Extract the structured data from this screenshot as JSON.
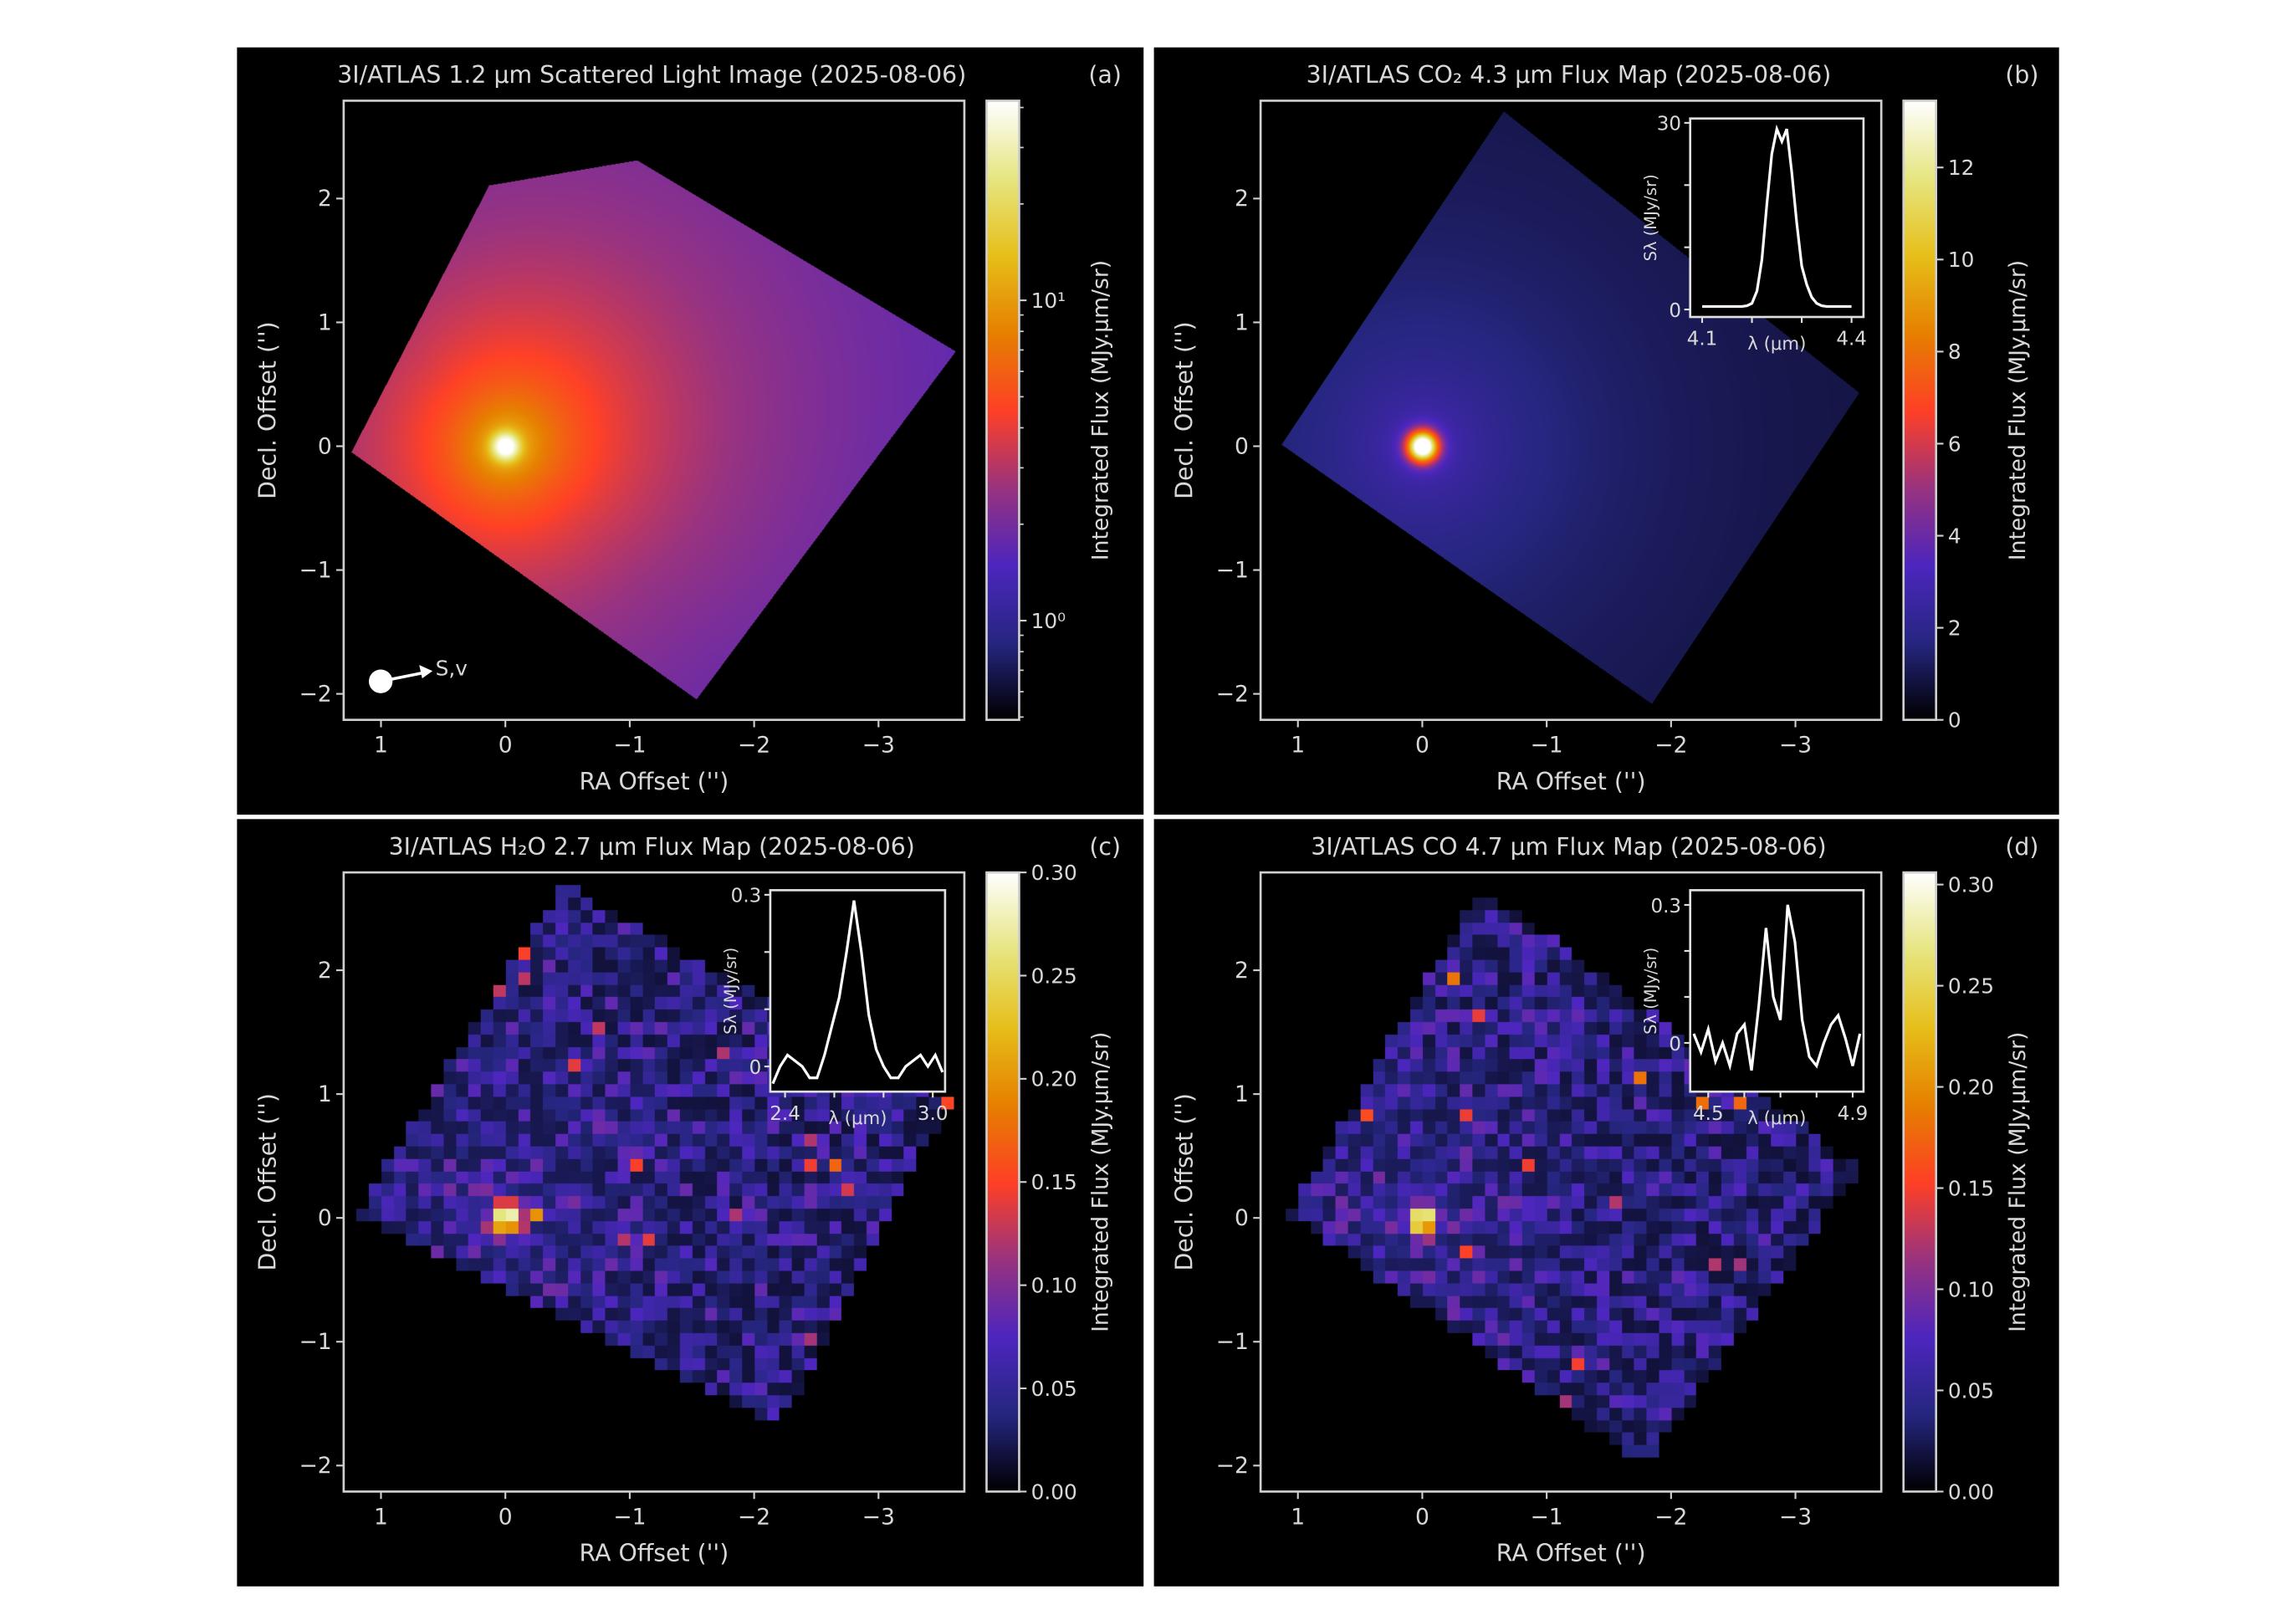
{
  "colors": {
    "background": "#000000",
    "axes": "#cfcfcf",
    "text": "#d8d8d8",
    "spectrum": "#ffffff",
    "page": "#ffffff"
  },
  "chart_data": [
    {
      "type": "heatmap",
      "panel": "a",
      "title": "3I/ATLAS 1.2 μm Scattered Light Image (2025-08-06)",
      "label": "(a)",
      "xlabel": "RA Offset ('')",
      "ylabel": "Decl. Offset ('')",
      "xlim": [
        1.3,
        -3.69
      ],
      "ylim": [
        -2.21,
        2.79
      ],
      "xticks": [
        1,
        0,
        -1,
        -2,
        -3
      ],
      "xticklabels": [
        "1",
        "0",
        "−1",
        "−2",
        "−3"
      ],
      "yticks": [
        2,
        1,
        0,
        -1,
        -2
      ],
      "yticklabels": [
        "2",
        "1",
        "0",
        "−1",
        "−2"
      ],
      "colormap": "CMRmap",
      "colorbar": {
        "label": "Integrated Flux (MJy.μm/sr)",
        "scale": "log",
        "lim": [
          0.49,
          42
        ],
        "ticks": [
          1,
          10
        ],
        "ticklabels": [
          "10⁰",
          "10¹"
        ]
      },
      "annotation": "S,v",
      "peak_position": [
        0,
        0
      ]
    },
    {
      "type": "heatmap",
      "panel": "b",
      "title": "3I/ATLAS CO₂ 4.3 μm Flux Map (2025-08-06)",
      "label": "(b)",
      "xlabel": "RA Offset ('')",
      "ylabel": "Decl. Offset ('')",
      "xlim": [
        1.3,
        -3.69
      ],
      "ylim": [
        -2.21,
        2.79
      ],
      "xticks": [
        1,
        0,
        -1,
        -2,
        -3
      ],
      "xticklabels": [
        "1",
        "0",
        "−1",
        "−2",
        "−3"
      ],
      "yticks": [
        2,
        1,
        0,
        -1,
        -2
      ],
      "yticklabels": [
        "2",
        "1",
        "0",
        "−1",
        "−2"
      ],
      "colormap": "CMRmap",
      "colorbar": {
        "label": "Integrated Flux (MJy.μm/sr)",
        "scale": "linear",
        "lim": [
          0,
          13.45
        ],
        "ticks": [
          0,
          2,
          4,
          6,
          8,
          10,
          12
        ],
        "ticklabels": [
          "0",
          "2",
          "4",
          "6",
          "8",
          "10",
          "12"
        ]
      },
      "peak_position": [
        0,
        0
      ],
      "inset": {
        "type": "line",
        "xlabel": "λ (μm)",
        "ylabel": "Sλ (MJy/sr)",
        "xlim": [
          4.076,
          4.424
        ],
        "ylim": [
          -1.2,
          30.7
        ],
        "xticks": [
          4.1,
          4.4
        ],
        "xticklabels": [
          "4.1",
          "4.4"
        ],
        "xminor": [
          4.2,
          4.3
        ],
        "yticks": [
          0,
          30
        ],
        "yticklabels": [
          "0",
          "30"
        ],
        "yminor": [
          10,
          20
        ],
        "x": [
          4.1,
          4.11,
          4.12,
          4.13,
          4.14,
          4.15,
          4.16,
          4.17,
          4.18,
          4.19,
          4.2,
          4.21,
          4.22,
          4.23,
          4.24,
          4.25,
          4.26,
          4.27,
          4.28,
          4.29,
          4.3,
          4.31,
          4.32,
          4.33,
          4.34,
          4.35,
          4.36,
          4.37,
          4.38,
          4.39,
          4.4
        ],
        "y": [
          0.5,
          0.5,
          0.5,
          0.5,
          0.5,
          0.5,
          0.5,
          0.5,
          0.5,
          0.6,
          1,
          3,
          8,
          17,
          25,
          29,
          27,
          29,
          22,
          14,
          7,
          4,
          2,
          1,
          0.6,
          0.5,
          0.5,
          0.5,
          0.5,
          0.5,
          0.5
        ]
      }
    },
    {
      "type": "heatmap",
      "panel": "c",
      "title": "3I/ATLAS H₂O 2.7 μm Flux Map (2025-08-06)",
      "label": "(c)",
      "xlabel": "RA Offset ('')",
      "ylabel": "Decl. Offset ('')",
      "xlim": [
        1.3,
        -3.69
      ],
      "ylim": [
        -2.21,
        2.79
      ],
      "xticks": [
        1,
        0,
        -1,
        -2,
        -3
      ],
      "xticklabels": [
        "1",
        "0",
        "−1",
        "−2",
        "−3"
      ],
      "yticks": [
        2,
        1,
        0,
        -1,
        -2
      ],
      "yticklabels": [
        "2",
        "1",
        "0",
        "−1",
        "−2"
      ],
      "colormap": "CMRmap",
      "colorbar": {
        "label": "Integrated Flux (MJy.μm/sr)",
        "scale": "linear",
        "lim": [
          0,
          0.3
        ],
        "ticks": [
          0,
          0.05,
          0.1,
          0.15,
          0.2,
          0.25,
          0.3
        ],
        "ticklabels": [
          "0.00",
          "0.05",
          "0.10",
          "0.15",
          "0.20",
          "0.25",
          "0.30"
        ]
      },
      "peak_position": [
        0,
        0
      ],
      "inset": {
        "type": "line",
        "xlabel": "λ (μm)",
        "ylabel": "Sλ (MJy/sr)",
        "xlim": [
          2.34,
          3.05
        ],
        "ylim": [
          -0.044,
          0.308
        ],
        "xticks": [
          2.4,
          3.0
        ],
        "xticklabels": [
          "2.4",
          "3.0"
        ],
        "xminor": [
          2.6,
          2.8
        ],
        "yticks": [
          0,
          0.3
        ],
        "yticklabels": [
          "0",
          "0.3"
        ],
        "yminor": [
          0.1,
          0.2
        ],
        "x": [
          2.35,
          2.38,
          2.41,
          2.44,
          2.47,
          2.5,
          2.53,
          2.56,
          2.59,
          2.62,
          2.65,
          2.68,
          2.71,
          2.74,
          2.77,
          2.8,
          2.83,
          2.86,
          2.89,
          2.92,
          2.95,
          2.98,
          3.01,
          3.04
        ],
        "y": [
          -0.03,
          0.0,
          0.02,
          0.01,
          0.0,
          -0.02,
          -0.02,
          0.02,
          0.07,
          0.12,
          0.2,
          0.29,
          0.2,
          0.09,
          0.03,
          0.0,
          -0.02,
          -0.02,
          0.0,
          0.01,
          0.02,
          0.0,
          0.02,
          -0.01
        ]
      }
    },
    {
      "type": "heatmap",
      "panel": "d",
      "title": "3I/ATLAS CO 4.7 μm Flux Map (2025-08-06)",
      "label": "(d)",
      "xlabel": "RA Offset ('')",
      "ylabel": "Decl. Offset ('')",
      "xlim": [
        1.3,
        -3.69
      ],
      "ylim": [
        -2.21,
        2.79
      ],
      "xticks": [
        1,
        0,
        -1,
        -2,
        -3
      ],
      "xticklabels": [
        "1",
        "0",
        "−1",
        "−2",
        "−3"
      ],
      "yticks": [
        2,
        1,
        0,
        -1,
        -2
      ],
      "yticklabels": [
        "2",
        "1",
        "0",
        "−1",
        "−2"
      ],
      "colormap": "CMRmap",
      "colorbar": {
        "label": "Integrated Flux (MJy.μm/sr)",
        "scale": "linear",
        "lim": [
          0,
          0.306
        ],
        "ticks": [
          0,
          0.05,
          0.1,
          0.15,
          0.2,
          0.25,
          0.3
        ],
        "ticklabels": [
          "0.00",
          "0.05",
          "0.10",
          "0.15",
          "0.20",
          "0.25",
          "0.30"
        ]
      },
      "peak_position": [
        0,
        0
      ],
      "inset": {
        "type": "line",
        "xlabel": "λ (μm)",
        "ylabel": "Sλ (MJy/sr)",
        "xlim": [
          4.45,
          4.93
        ],
        "ylim": [
          -0.106,
          0.332
        ],
        "xticks": [
          4.5,
          4.9
        ],
        "xticklabels": [
          "4.5",
          "4.9"
        ],
        "xminor": [
          4.6,
          4.7,
          4.8
        ],
        "yticks": [
          0,
          0.3
        ],
        "yticklabels": [
          "0",
          "0.3"
        ],
        "yminor": [
          0.1,
          0.2
        ],
        "x": [
          4.46,
          4.48,
          4.5,
          4.52,
          4.54,
          4.56,
          4.58,
          4.6,
          4.62,
          4.64,
          4.66,
          4.68,
          4.7,
          4.72,
          4.74,
          4.76,
          4.78,
          4.8,
          4.82,
          4.84,
          4.86,
          4.88,
          4.9,
          4.92
        ],
        "y": [
          0.02,
          -0.02,
          0.03,
          -0.04,
          0.0,
          -0.05,
          0.02,
          0.04,
          -0.06,
          0.08,
          0.25,
          0.1,
          0.05,
          0.3,
          0.22,
          0.05,
          -0.03,
          -0.05,
          0.0,
          0.04,
          0.06,
          0.01,
          -0.05,
          0.02
        ]
      }
    }
  ]
}
